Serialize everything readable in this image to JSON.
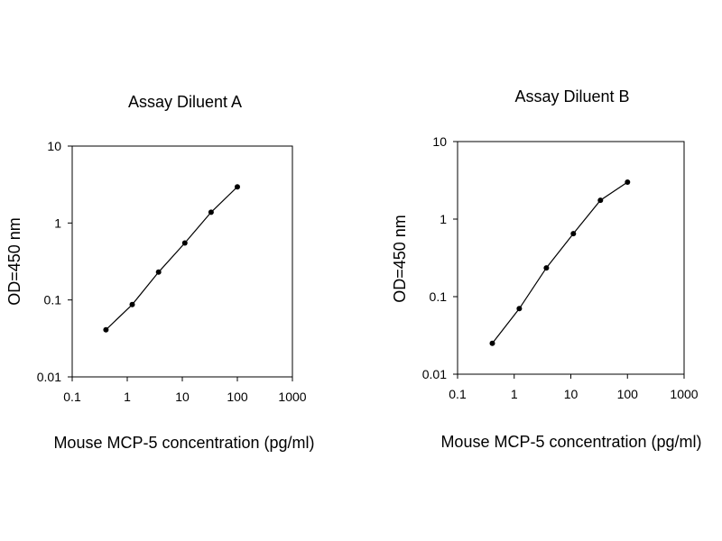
{
  "chart_data": [
    {
      "type": "line",
      "title": "Assay Diluent A",
      "xlabel": "Mouse MCP-5 concentration (pg/ml)",
      "ylabel": "OD=450 nm",
      "xscale": "log",
      "yscale": "log",
      "xlim": [
        0.1,
        1000
      ],
      "ylim": [
        0.01,
        10
      ],
      "xticks": [
        "0.1",
        "1",
        "10",
        "100",
        "1000"
      ],
      "yticks": [
        "0.01",
        "0.1",
        "1",
        "10"
      ],
      "grid": false,
      "series": [
        {
          "x": [
            0.41,
            1.23,
            3.7,
            11.1,
            33.3,
            100
          ],
          "y": [
            0.041,
            0.087,
            0.23,
            0.55,
            1.38,
            2.95
          ]
        }
      ]
    },
    {
      "type": "line",
      "title": "Assay Diluent B",
      "xlabel": "Mouse MCP-5 concentration (pg/ml)",
      "ylabel": "OD=450 nm",
      "xscale": "log",
      "yscale": "log",
      "xlim": [
        0.1,
        1000
      ],
      "ylim": [
        0.01,
        10
      ],
      "xticks": [
        "0.1",
        "1",
        "10",
        "100",
        "1000"
      ],
      "yticks": [
        "0.01",
        "0.1",
        "1",
        "10"
      ],
      "grid": false,
      "series": [
        {
          "x": [
            0.41,
            1.23,
            3.7,
            11.1,
            33.3,
            100
          ],
          "y": [
            0.025,
            0.07,
            0.235,
            0.65,
            1.75,
            3.0
          ]
        }
      ]
    }
  ]
}
